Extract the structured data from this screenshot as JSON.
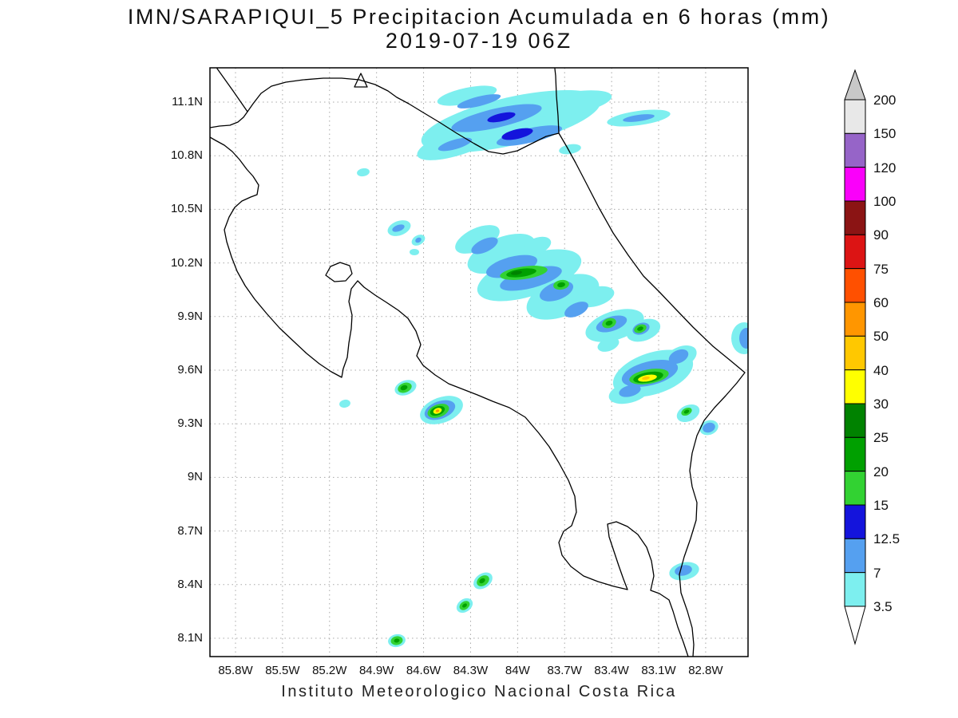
{
  "title": {
    "line1": "IMN/SARAPIQUI_5 Precipitacion Acumulada en 6 horas (mm)",
    "line2": "2019-07-19 06Z"
  },
  "caption": "Instituto Meteorologico Nacional Costa Rica",
  "map": {
    "lat_ticks": [
      "11.1N",
      "10.8N",
      "10.5N",
      "10.2N",
      "9.9N",
      "9.6N",
      "9.3N",
      "9N",
      "8.7N",
      "8.4N",
      "8.1N"
    ],
    "lon_ticks": [
      "85.8W",
      "85.5W",
      "85.2W",
      "84.9W",
      "84.6W",
      "84.3W",
      "84W",
      "83.7W",
      "83.4W",
      "83.1W",
      "82.8W"
    ]
  },
  "colorbar": {
    "unit": "mm",
    "labels": [
      "200",
      "150",
      "120",
      "100",
      "90",
      "75",
      "60",
      "50",
      "40",
      "30",
      "25",
      "20",
      "15",
      "12.5",
      "7",
      "3.5"
    ],
    "segments": [
      {
        "from": 150,
        "to": 200,
        "color": "#E8E8E8"
      },
      {
        "from": 120,
        "to": 150,
        "color": "#9664C8"
      },
      {
        "from": 100,
        "to": 120,
        "color": "#FA00FA"
      },
      {
        "from": 90,
        "to": 100,
        "color": "#8B1414"
      },
      {
        "from": 75,
        "to": 90,
        "color": "#DC1414"
      },
      {
        "from": 60,
        "to": 75,
        "color": "#FF5000"
      },
      {
        "from": 50,
        "to": 60,
        "color": "#FF9600"
      },
      {
        "from": 40,
        "to": 50,
        "color": "#FFC800"
      },
      {
        "from": 30,
        "to": 40,
        "color": "#FFFF00"
      },
      {
        "from": 25,
        "to": 30,
        "color": "#008200"
      },
      {
        "from": 20,
        "to": 25,
        "color": "#00A000"
      },
      {
        "from": 15,
        "to": 20,
        "color": "#32D232"
      },
      {
        "from": 12.5,
        "to": 15,
        "color": "#1414DC"
      },
      {
        "from": 7,
        "to": 12.5,
        "color": "#55A0F0"
      },
      {
        "from": 3.5,
        "to": 7,
        "color": "#7DEFEF"
      }
    ],
    "above_color": "#C8C8C8",
    "below_color": "#FFFFFF"
  }
}
